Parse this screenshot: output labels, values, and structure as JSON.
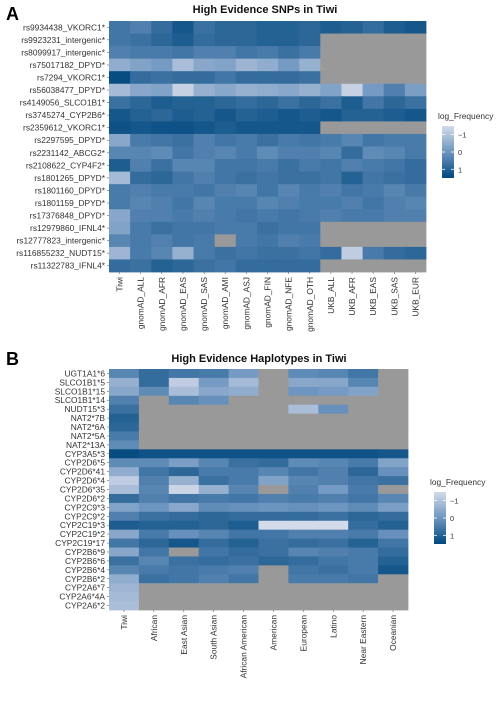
{
  "chart_data": [
    {
      "type": "heatmap",
      "panel": "A",
      "title": "High Evidence SNPs in Tiwi",
      "legend_title": "log_Frequency",
      "legend_ticks": [
        -1,
        0,
        1
      ],
      "color_scale": {
        "low": "#d3dae9",
        "mid": "#6e95c0",
        "high": "#00487e",
        "na": "#999999"
      },
      "columns": [
        "Tiwi",
        "gnomAD_ALL",
        "gnomAD_AFR",
        "gnomAD_EAS",
        "gnomAD_SAS",
        "gnomAD_AMI",
        "gnomAD_ASJ",
        "gnomAD_FIN",
        "gnomAD_NFE",
        "gnomAD_OTH",
        "UKB_ALL",
        "UKB_AFR",
        "UKB_EAS",
        "UKB_SAS",
        "UKB_EUR"
      ],
      "rows": [
        "rs9934438_VKORC1*",
        "rs9923231_intergenic*",
        "rs8099917_intergenic*",
        "rs75017182_DPYD*",
        "rs7294_VKORC1*",
        "rs56038477_DPYD*",
        "rs4149056_SLCO1B1*",
        "rs3745274_CYP2B6*",
        "rs2359612_VKORC1*",
        "rs2297595_DPYD*",
        "rs2231142_ABCG2*",
        "rs2108622_CYP4F2*",
        "rs1801265_DPYD*",
        "rs1801160_DPYD*",
        "rs1801159_DPYD*",
        "rs17376848_DPYD*",
        "rs12979860_IFNL4*",
        "rs12777823_intergenic*",
        "rs116855232_NUDT15*",
        "rs11322783_IFNL4*"
      ],
      "values": [
        [
          0.6,
          0.4,
          0.8,
          1.2,
          0.7,
          0.9,
          0.9,
          1.0,
          1.0,
          0.9,
          1.1,
          1.0,
          0.8,
          1.1,
          1.2
        ],
        [
          0.6,
          0.7,
          0.9,
          1.1,
          0.8,
          0.9,
          0.9,
          1.0,
          1.0,
          0.9,
          null,
          null,
          null,
          null,
          null
        ],
        [
          0.4,
          0.5,
          0.5,
          0.6,
          0.4,
          0.4,
          0.6,
          0.5,
          0.7,
          0.5,
          null,
          null,
          null,
          null,
          null
        ],
        [
          -0.5,
          -0.3,
          -0.1,
          -0.9,
          -0.4,
          -0.3,
          -0.7,
          -0.5,
          -0.1,
          -0.6,
          null,
          null,
          null,
          null,
          null
        ],
        [
          1.4,
          0.8,
          0.7,
          0.8,
          0.8,
          0.6,
          0.8,
          0.8,
          0.8,
          0.7,
          null,
          null,
          null,
          null,
          null
        ],
        [
          -0.8,
          -0.4,
          -0.3,
          -1.3,
          -0.6,
          -0.4,
          -0.6,
          -0.5,
          -0.4,
          -0.6,
          -0.3,
          -1.3,
          -0.1,
          0.4,
          -0.2
        ],
        [
          0.7,
          0.9,
          1.1,
          1.0,
          1.0,
          0.9,
          0.8,
          0.9,
          0.7,
          0.9,
          0.7,
          1.1,
          0.6,
          0.9,
          0.7
        ],
        [
          1.2,
          1.0,
          0.9,
          1.1,
          1.0,
          1.2,
          1.0,
          1.1,
          1.2,
          1.1,
          1.2,
          1.0,
          1.0,
          1.1,
          1.2
        ],
        [
          1.3,
          1.2,
          1.3,
          1.3,
          1.2,
          1.1,
          1.2,
          1.2,
          1.2,
          1.2,
          null,
          null,
          null,
          null,
          null
        ],
        [
          -0.4,
          0.5,
          0.6,
          0.7,
          0.4,
          0.6,
          0.5,
          0.7,
          0.5,
          0.6,
          0.5,
          0.3,
          0.6,
          0.5,
          0.5
        ],
        [
          0.3,
          0.3,
          0.2,
          0.6,
          0.4,
          0.3,
          0.5,
          0.2,
          0.4,
          0.4,
          0.3,
          0.8,
          0.2,
          0.3,
          0.5
        ],
        [
          1.1,
          0.4,
          0.7,
          0.3,
          0.3,
          0.6,
          0.6,
          0.5,
          0.7,
          0.5,
          0.6,
          0.4,
          0.5,
          0.6,
          0.8
        ],
        [
          -0.8,
          0.8,
          0.9,
          0.6,
          0.4,
          0.6,
          0.7,
          0.6,
          0.7,
          0.7,
          0.6,
          1.0,
          0.6,
          0.7,
          0.8
        ],
        [
          0.5,
          0.4,
          0.5,
          0.5,
          0.6,
          0.4,
          0.3,
          0.6,
          0.3,
          0.5,
          0.4,
          0.6,
          0.5,
          0.3,
          0.5
        ],
        [
          0.5,
          0.3,
          0.4,
          0.6,
          0.3,
          0.5,
          0.5,
          0.3,
          0.4,
          0.5,
          0.5,
          0.4,
          0.6,
          0.4,
          0.3
        ],
        [
          -0.4,
          0.4,
          0.4,
          0.5,
          0.4,
          0.5,
          0.6,
          0.5,
          0.6,
          0.5,
          0.4,
          0.5,
          0.5,
          0.4,
          0.4
        ],
        [
          -0.3,
          0.5,
          0.7,
          0.6,
          0.6,
          0.5,
          0.5,
          0.7,
          0.6,
          0.6,
          null,
          null,
          null,
          null,
          null
        ],
        [
          0.3,
          0.5,
          0.4,
          0.6,
          0.5,
          null,
          0.5,
          0.6,
          0.4,
          0.5,
          null,
          null,
          null,
          null,
          null
        ],
        [
          -0.7,
          0.5,
          0.3,
          -0.6,
          0.5,
          0.7,
          0.6,
          0.7,
          0.7,
          0.6,
          0.8,
          -1.2,
          0.5,
          0.8,
          0.9
        ],
        [
          0.8,
          0.7,
          1.0,
          0.9,
          0.7,
          0.6,
          0.8,
          0.8,
          0.8,
          0.8,
          null,
          null,
          null,
          null,
          null
        ]
      ]
    },
    {
      "type": "heatmap",
      "panel": "B",
      "title": "High Evidence Haplotypes in Tiwi",
      "legend_title": "log_Frequency",
      "legend_ticks": [
        -1,
        0,
        1
      ],
      "color_scale": {
        "low": "#d3dae9",
        "mid": "#6e95c0",
        "high": "#00487e",
        "na": "#999999"
      },
      "columns": [
        "Tiwi",
        "African",
        "East Asian",
        "South Asian",
        "African American",
        "American",
        "European",
        "Latino",
        "Near Eastern",
        "Oceanian"
      ],
      "rows": [
        "UGT1A1*6",
        "SLCO1B1*5",
        "SLCO1B1*15",
        "SLCO1B1*14",
        "NUDT15*3",
        "NAT2*7B",
        "NAT2*6A",
        "NAT2*5A",
        "NAT2*13A",
        "CYP3A5*3",
        "CYP2D6*5",
        "CYP2D6*41",
        "CYP2D6*4",
        "CYP2D6*35",
        "CYP2D6*2",
        "CYP2C9*3",
        "CYP2C9*2",
        "CYP2C19*3",
        "CYP2C19*2",
        "CYP2C19*17",
        "CYP2B6*9",
        "CYP2B6*6",
        "CYP2B6*4",
        "CYP2B6*2",
        "CYP2A6*7",
        "CYP2A6*4A",
        "CYP2A6*2"
      ],
      "values": [
        [
          0.3,
          0.8,
          0.6,
          0.5,
          -0.1,
          null,
          0.2,
          0.3,
          0.6,
          null
        ],
        [
          -0.6,
          0.8,
          -1.2,
          -0.1,
          -0.8,
          null,
          -0.4,
          -0.4,
          0.3,
          null
        ],
        [
          -0.4,
          0.2,
          -0.9,
          -0.4,
          -0.5,
          null,
          0.0,
          -0.1,
          -0.3,
          null
        ],
        [
          0.4,
          null,
          0.3,
          0.1,
          null,
          null,
          null,
          null,
          null,
          null
        ],
        [
          0.7,
          null,
          null,
          null,
          null,
          null,
          -0.9,
          0.1,
          null,
          null
        ],
        [
          1.0,
          null,
          null,
          null,
          null,
          null,
          null,
          null,
          null,
          null
        ],
        [
          0.9,
          null,
          null,
          null,
          null,
          null,
          null,
          null,
          null,
          null
        ],
        [
          0.5,
          null,
          null,
          null,
          null,
          null,
          null,
          null,
          null,
          null
        ],
        [
          0.2,
          null,
          null,
          null,
          null,
          null,
          null,
          null,
          null,
          null
        ],
        [
          1.4,
          1.3,
          1.3,
          1.3,
          1.3,
          1.3,
          1.3,
          1.3,
          1.3,
          1.2
        ],
        [
          0.2,
          0.2,
          -0.2,
          0.3,
          0.7,
          0.8,
          0.2,
          0.3,
          0.5,
          -0.3
        ],
        [
          -0.5,
          0.6,
          0.9,
          0.5,
          0.5,
          0.3,
          0.6,
          0.4,
          0.9,
          0.1
        ],
        [
          -1.2,
          0.4,
          -0.6,
          0.7,
          0.5,
          -0.3,
          0.3,
          0.4,
          0.6,
          0.7
        ],
        [
          -0.9,
          0.3,
          -1.4,
          -0.6,
          0.3,
          null,
          0.4,
          -0.1,
          0.5,
          null
        ],
        [
          0.8,
          0.4,
          0.6,
          0.5,
          0.6,
          0.4,
          0.5,
          0.4,
          0.6,
          0.3
        ],
        [
          -0.3,
          0.0,
          -0.4,
          0.2,
          0.1,
          0.0,
          0.1,
          0.0,
          0.2,
          -0.2
        ],
        [
          0.4,
          0.7,
          0.8,
          0.9,
          0.8,
          0.8,
          0.8,
          0.7,
          0.9,
          0.8
        ],
        [
          1.1,
          1.0,
          1.0,
          0.9,
          1.1,
          -1.6,
          -1.7,
          -1.6,
          0.8,
          1.0
        ],
        [
          -0.4,
          0.5,
          0.1,
          0.3,
          0.6,
          0.6,
          0.4,
          0.4,
          0.5,
          0.1
        ],
        [
          0.6,
          0.9,
          1.2,
          0.8,
          1.0,
          0.7,
          0.8,
          0.7,
          1.0,
          0.6
        ],
        [
          -0.4,
          0.6,
          null,
          0.6,
          0.8,
          0.7,
          0.3,
          0.4,
          0.5,
          0.8
        ],
        [
          0.7,
          0.3,
          0.7,
          0.8,
          0.7,
          0.9,
          0.8,
          0.6,
          0.5,
          1.0
        ],
        [
          0.3,
          0.5,
          0.6,
          0.5,
          0.4,
          null,
          0.6,
          0.7,
          0.5,
          1.2
        ],
        [
          -0.5,
          0.7,
          0.6,
          0.4,
          0.6,
          null,
          0.5,
          0.5,
          0.6,
          null
        ],
        [
          -0.7,
          null,
          null,
          null,
          null,
          null,
          null,
          null,
          null,
          null
        ],
        [
          -0.8,
          null,
          null,
          null,
          null,
          null,
          null,
          null,
          null,
          null
        ],
        [
          -0.9,
          null,
          null,
          null,
          null,
          null,
          null,
          null,
          null,
          null
        ]
      ]
    }
  ]
}
